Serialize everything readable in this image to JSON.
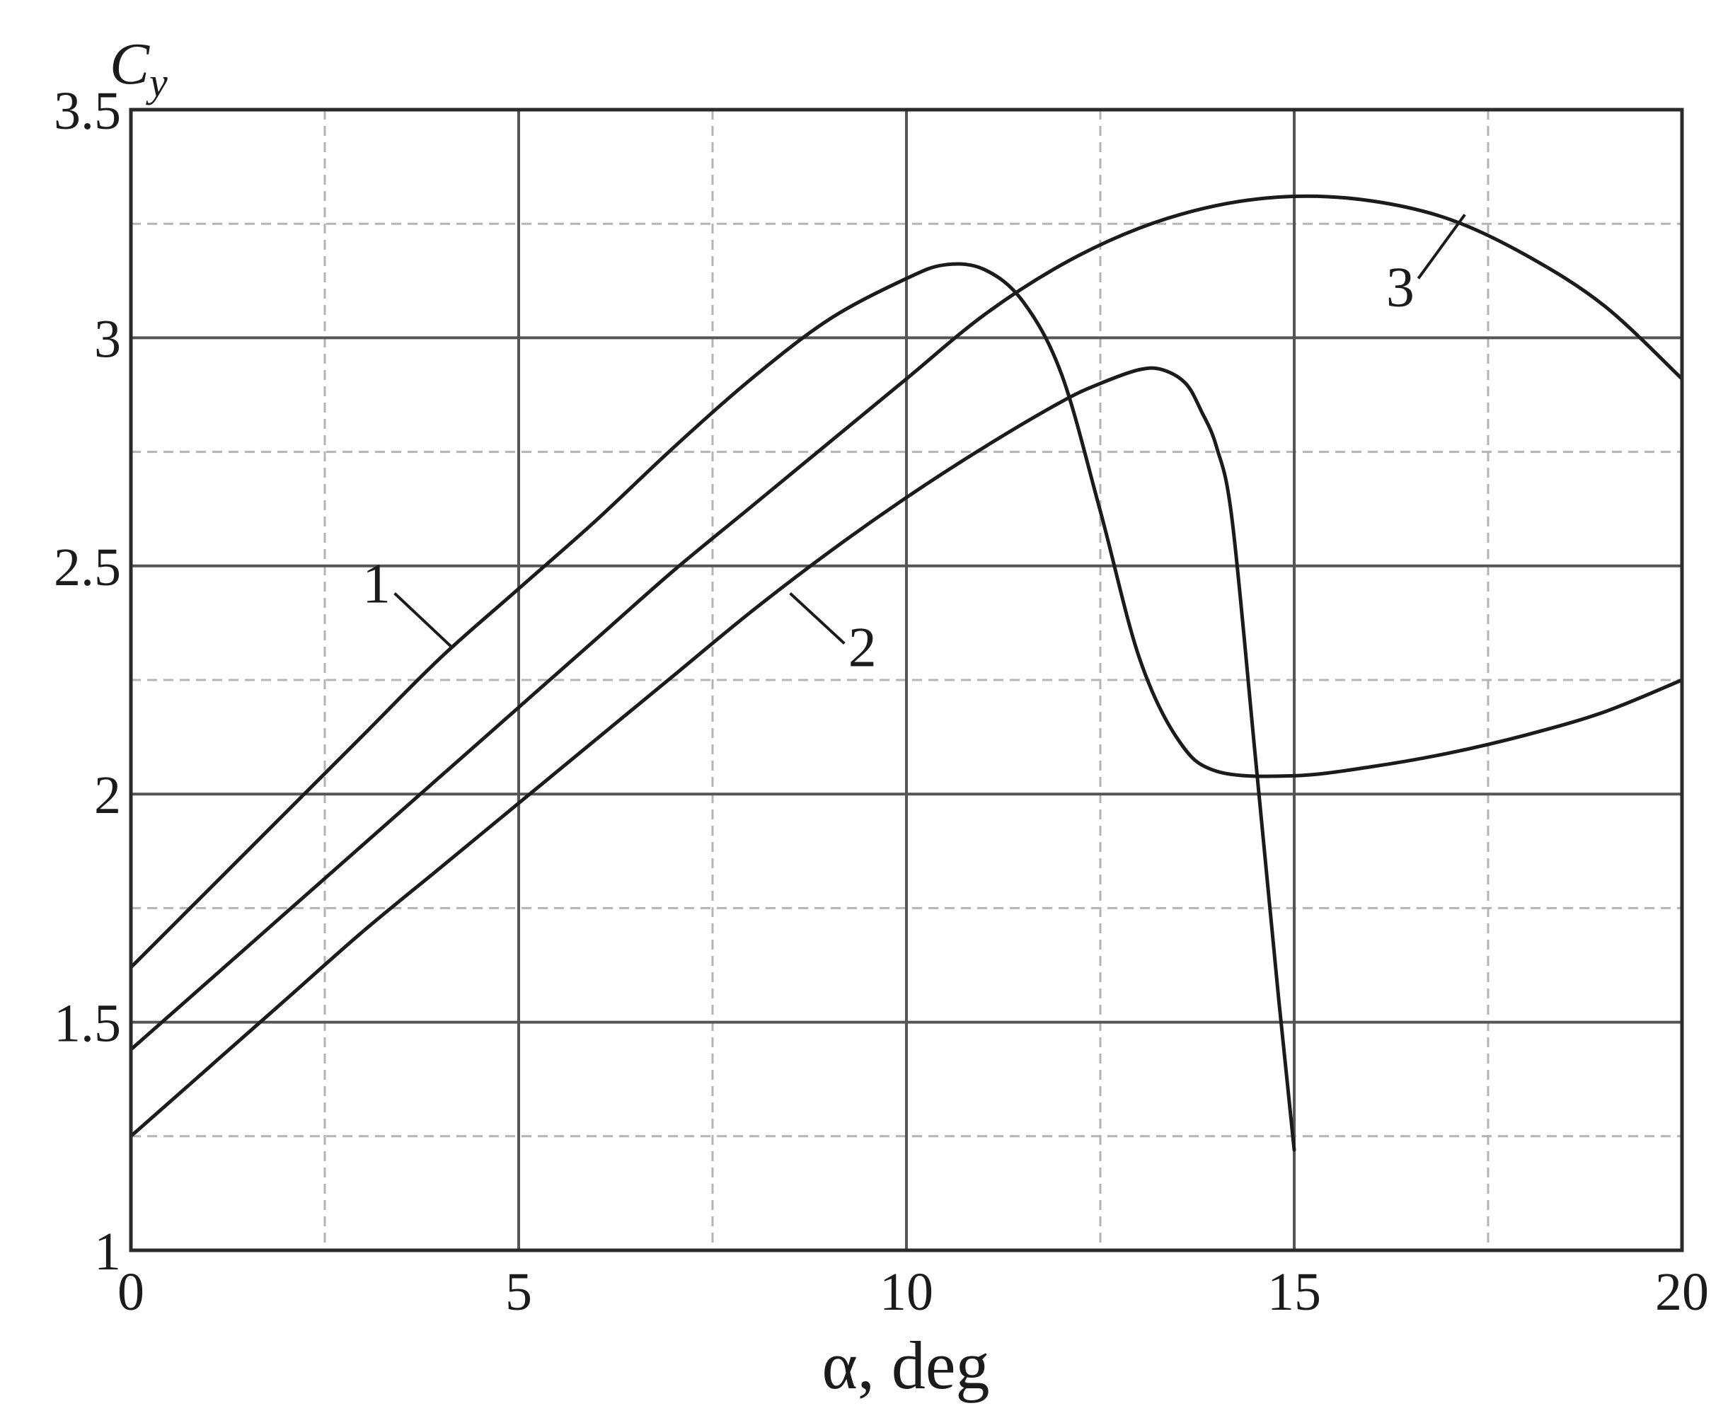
{
  "chart_data": {
    "type": "line",
    "title": "",
    "xlabel": "α, deg",
    "ylabel": "C",
    "ylabel_subscript": "y",
    "xlim": [
      0,
      20
    ],
    "ylim": [
      1,
      3.5
    ],
    "x_major_ticks": [
      0,
      5,
      10,
      15,
      20
    ],
    "x_tick_labels": [
      "0",
      "5",
      "10",
      "15",
      "20"
    ],
    "x_minor_grid": [
      2.5,
      7.5,
      12.5,
      17.5
    ],
    "y_major_ticks": [
      1,
      1.5,
      2,
      2.5,
      3,
      3.5
    ],
    "y_tick_labels": [
      "1",
      "1.5",
      "2",
      "2.5",
      "3",
      "3.5"
    ],
    "y_minor_grid": [
      1.25,
      1.75,
      2.25,
      2.75,
      3.25
    ],
    "grid": true,
    "legend": "none",
    "line_color": "#1b1b1b",
    "grid_color": "#9a9a9a",
    "series": [
      {
        "name": "1",
        "x": [
          0,
          1,
          2,
          3,
          4,
          5,
          6,
          7,
          8,
          9,
          10,
          10.5,
          11,
          11.5,
          12,
          12.5,
          13,
          13.5,
          14,
          15,
          16,
          17,
          18,
          19,
          20
        ],
        "y": [
          1.62,
          1.79,
          1.96,
          2.13,
          2.3,
          2.45,
          2.6,
          2.76,
          2.91,
          3.04,
          3.13,
          3.16,
          3.15,
          3.08,
          2.92,
          2.62,
          2.3,
          2.12,
          2.05,
          2.04,
          2.06,
          2.09,
          2.13,
          2.18,
          2.25
        ]
      },
      {
        "name": "2",
        "x": [
          0,
          1,
          2,
          3,
          4,
          5,
          6,
          7,
          8,
          9,
          10,
          11,
          12,
          12.5,
          13,
          13.3,
          13.6,
          13.8,
          14,
          14.2,
          14.5,
          14.8,
          15
        ],
        "y": [
          1.25,
          1.4,
          1.55,
          1.7,
          1.84,
          1.98,
          2.12,
          2.26,
          2.4,
          2.53,
          2.65,
          2.76,
          2.86,
          2.9,
          2.93,
          2.93,
          2.9,
          2.84,
          2.76,
          2.6,
          2.08,
          1.55,
          1.22
        ]
      },
      {
        "name": "3",
        "x": [
          0,
          1,
          2,
          3,
          4,
          5,
          6,
          7,
          8,
          9,
          10,
          11,
          12,
          13,
          14,
          15,
          16,
          17,
          18,
          19,
          20
        ],
        "y": [
          1.44,
          1.59,
          1.74,
          1.89,
          2.04,
          2.19,
          2.34,
          2.49,
          2.63,
          2.77,
          2.91,
          3.05,
          3.16,
          3.24,
          3.29,
          3.31,
          3.3,
          3.26,
          3.18,
          3.07,
          2.91
        ]
      }
    ]
  }
}
